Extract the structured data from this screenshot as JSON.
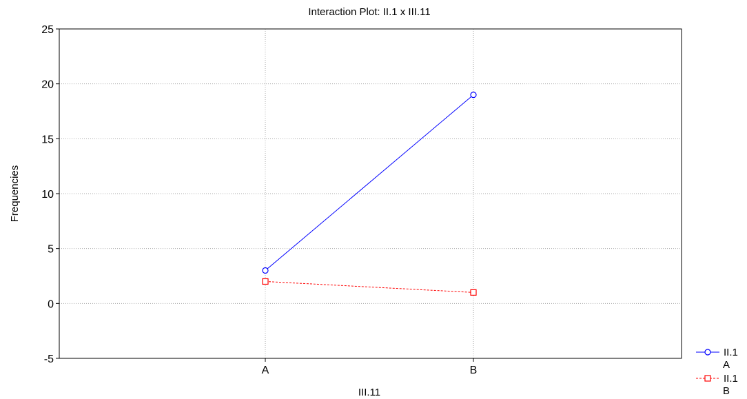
{
  "chart_data": {
    "type": "line",
    "title": "Interaction Plot: II.1 x III.11",
    "xlabel": "III.11",
    "ylabel": "Frequencies",
    "categories": [
      "A",
      "B"
    ],
    "ylim": [
      -5,
      25
    ],
    "yticks": [
      -5,
      0,
      5,
      10,
      15,
      20,
      25
    ],
    "grid": true,
    "legend_position": "bottom-right",
    "series": [
      {
        "name": "II.1",
        "sublabel": "A",
        "values": [
          3,
          19
        ],
        "color": "#0000ff",
        "marker": "circle",
        "line": "solid"
      },
      {
        "name": "II.1",
        "sublabel": "B",
        "values": [
          2,
          1
        ],
        "color": "#ff0000",
        "marker": "square",
        "line": "dashed"
      }
    ]
  }
}
